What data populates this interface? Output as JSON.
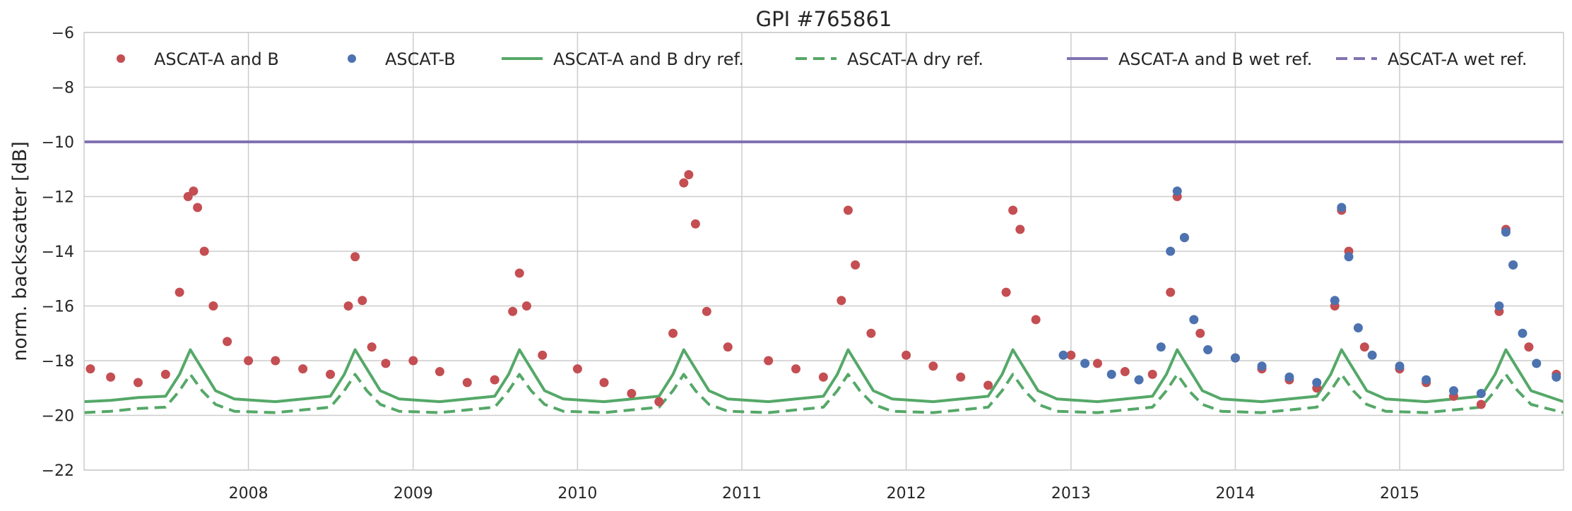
{
  "chart_data": {
    "type": "scatter",
    "title": "GPI #765861",
    "xlabel": "",
    "ylabel": "norm. backscatter [dB]",
    "xlim": [
      "2007-01-01",
      "2015-12-31"
    ],
    "ylim": [
      -22,
      -6
    ],
    "yticks": [
      -22,
      -20,
      -18,
      -16,
      -14,
      -12,
      -10,
      -8,
      -6
    ],
    "yticklabels": [
      "−22",
      "−20",
      "−18",
      "−16",
      "−14",
      "−12",
      "−10",
      "−8",
      "−6"
    ],
    "xticks": [
      "2008-01-01",
      "2009-01-01",
      "2010-01-01",
      "2011-01-01",
      "2012-01-01",
      "2013-01-01",
      "2014-01-01",
      "2015-01-01"
    ],
    "xticklabels": [
      "2008",
      "2009",
      "2010",
      "2011",
      "2012",
      "2013",
      "2014",
      "2015"
    ],
    "grid": true,
    "legend_position": "top",
    "series": [
      {
        "name": "ASCAT-A and B",
        "kind": "scatter",
        "color": "#c44e52",
        "x": [
          "2007-01-15",
          "2007-03-01",
          "2007-05-01",
          "2007-07-01",
          "2007-08-01",
          "2007-08-20",
          "2007-09-01",
          "2007-09-10",
          "2007-09-25",
          "2007-10-15",
          "2007-11-15",
          "2008-01-01",
          "2008-03-01",
          "2008-05-01",
          "2008-07-01",
          "2008-08-10",
          "2008-08-25",
          "2008-09-10",
          "2008-10-01",
          "2008-11-01",
          "2009-01-01",
          "2009-03-01",
          "2009-05-01",
          "2009-07-01",
          "2009-08-10",
          "2009-08-25",
          "2009-09-10",
          "2009-10-15",
          "2010-01-01",
          "2010-03-01",
          "2010-05-01",
          "2010-07-01",
          "2010-08-01",
          "2010-08-25",
          "2010-09-05",
          "2010-09-20",
          "2010-10-15",
          "2010-12-01",
          "2011-03-01",
          "2011-05-01",
          "2011-07-01",
          "2011-08-10",
          "2011-08-25",
          "2011-09-10",
          "2011-10-15",
          "2012-01-01",
          "2012-03-01",
          "2012-05-01",
          "2012-07-01",
          "2012-08-10",
          "2012-08-25",
          "2012-09-10",
          "2012-10-15",
          "2013-01-01",
          "2013-03-01",
          "2013-05-01",
          "2013-07-01",
          "2013-08-10",
          "2013-08-25",
          "2013-09-10",
          "2013-10-15",
          "2014-01-01",
          "2014-03-01",
          "2014-05-01",
          "2014-07-01",
          "2014-08-10",
          "2014-08-25",
          "2014-09-10",
          "2014-10-15",
          "2015-01-01",
          "2015-03-01",
          "2015-05-01",
          "2015-07-01",
          "2015-08-10",
          "2015-08-25",
          "2015-09-10",
          "2015-10-15",
          "2015-12-15"
        ],
        "y": [
          -18.3,
          -18.6,
          -18.8,
          -18.5,
          -15.5,
          -12.0,
          -11.8,
          -12.4,
          -14.0,
          -16.0,
          -17.3,
          -18.0,
          -18.0,
          -18.3,
          -18.5,
          -16.0,
          -14.2,
          -15.8,
          -17.5,
          -18.1,
          -18.0,
          -18.4,
          -18.8,
          -18.7,
          -16.2,
          -14.8,
          -16.0,
          -17.8,
          -18.3,
          -18.8,
          -19.2,
          -19.5,
          -17.0,
          -11.5,
          -11.2,
          -13.0,
          -16.2,
          -17.5,
          -18.0,
          -18.3,
          -18.6,
          -15.8,
          -12.5,
          -14.5,
          -17.0,
          -17.8,
          -18.2,
          -18.6,
          -18.9,
          -15.5,
          -12.5,
          -13.2,
          -16.5,
          -17.8,
          -18.1,
          -18.4,
          -18.5,
          -15.5,
          -12.0,
          -13.5,
          -17.0,
          -17.9,
          -18.3,
          -18.7,
          -19.0,
          -16.0,
          -12.5,
          -14.0,
          -17.5,
          -18.3,
          -18.8,
          -19.3,
          -19.6,
          -16.2,
          -13.2,
          -14.5,
          -17.5,
          -18.5
        ]
      },
      {
        "name": "ASCAT-B",
        "kind": "scatter",
        "color": "#4c72b0",
        "x": [
          "2012-12-15",
          "2013-02-01",
          "2013-04-01",
          "2013-06-01",
          "2013-07-20",
          "2013-08-10",
          "2013-08-25",
          "2013-09-10",
          "2013-10-01",
          "2013-11-01",
          "2014-01-01",
          "2014-03-01",
          "2014-05-01",
          "2014-07-01",
          "2014-08-10",
          "2014-08-25",
          "2014-09-10",
          "2014-10-01",
          "2014-11-01",
          "2015-01-01",
          "2015-03-01",
          "2015-05-01",
          "2015-07-01",
          "2015-08-10",
          "2015-08-25",
          "2015-09-10",
          "2015-10-01",
          "2015-11-01",
          "2015-12-15"
        ],
        "y": [
          -17.8,
          -18.1,
          -18.5,
          -18.7,
          -17.5,
          -14.0,
          -11.8,
          -13.5,
          -16.5,
          -17.6,
          -17.9,
          -18.2,
          -18.6,
          -18.8,
          -15.8,
          -12.4,
          -14.2,
          -16.8,
          -17.8,
          -18.2,
          -18.7,
          -19.1,
          -19.2,
          -16.0,
          -13.3,
          -14.5,
          -17.0,
          -18.1,
          -18.6
        ]
      },
      {
        "name": "ASCAT-A and B dry ref.",
        "kind": "line",
        "style": "solid",
        "color": "#55a868",
        "x": [
          "2007-01-01",
          "2007-03-01",
          "2007-05-01",
          "2007-07-01",
          "2007-08-01",
          "2007-08-25",
          "2007-09-20",
          "2007-10-20",
          "2007-12-01",
          "2008-03-01",
          "2008-05-01",
          "2008-07-01",
          "2008-08-01",
          "2008-08-25",
          "2008-09-20",
          "2008-10-20",
          "2008-12-01",
          "2009-03-01",
          "2009-05-01",
          "2009-07-01",
          "2009-08-01",
          "2009-08-25",
          "2009-09-20",
          "2009-10-20",
          "2009-12-01",
          "2010-03-01",
          "2010-05-01",
          "2010-07-01",
          "2010-08-01",
          "2010-08-25",
          "2010-09-20",
          "2010-10-20",
          "2010-12-01",
          "2011-03-01",
          "2011-05-01",
          "2011-07-01",
          "2011-08-01",
          "2011-08-25",
          "2011-09-20",
          "2011-10-20",
          "2011-12-01",
          "2012-03-01",
          "2012-05-01",
          "2012-07-01",
          "2012-08-01",
          "2012-08-25",
          "2012-09-20",
          "2012-10-20",
          "2012-12-01",
          "2013-03-01",
          "2013-05-01",
          "2013-07-01",
          "2013-08-01",
          "2013-08-25",
          "2013-09-20",
          "2013-10-20",
          "2013-12-01",
          "2014-03-01",
          "2014-05-01",
          "2014-07-01",
          "2014-08-01",
          "2014-08-25",
          "2014-09-20",
          "2014-10-20",
          "2014-12-01",
          "2015-03-01",
          "2015-05-01",
          "2015-07-01",
          "2015-08-01",
          "2015-08-25",
          "2015-09-20",
          "2015-10-20",
          "2015-12-31"
        ],
        "y": [
          -19.5,
          -19.45,
          -19.35,
          -19.3,
          -18.5,
          -17.6,
          -18.3,
          -19.1,
          -19.4,
          -19.5,
          -19.4,
          -19.3,
          -18.5,
          -17.6,
          -18.3,
          -19.1,
          -19.4,
          -19.5,
          -19.4,
          -19.3,
          -18.5,
          -17.6,
          -18.3,
          -19.1,
          -19.4,
          -19.5,
          -19.4,
          -19.3,
          -18.5,
          -17.6,
          -18.3,
          -19.1,
          -19.4,
          -19.5,
          -19.4,
          -19.3,
          -18.5,
          -17.6,
          -18.3,
          -19.1,
          -19.4,
          -19.5,
          -19.4,
          -19.3,
          -18.5,
          -17.6,
          -18.3,
          -19.1,
          -19.4,
          -19.5,
          -19.4,
          -19.3,
          -18.5,
          -17.6,
          -18.3,
          -19.1,
          -19.4,
          -19.5,
          -19.4,
          -19.3,
          -18.5,
          -17.6,
          -18.3,
          -19.1,
          -19.4,
          -19.5,
          -19.4,
          -19.3,
          -18.5,
          -17.6,
          -18.3,
          -19.1,
          -19.5
        ]
      },
      {
        "name": "ASCAT-A dry ref.",
        "kind": "line",
        "style": "dashed",
        "color": "#55a868",
        "x": [
          "2007-01-01",
          "2007-03-01",
          "2007-05-01",
          "2007-07-01",
          "2007-08-01",
          "2007-08-25",
          "2007-09-20",
          "2007-10-20",
          "2007-12-01",
          "2008-03-01",
          "2008-05-01",
          "2008-07-01",
          "2008-08-01",
          "2008-08-25",
          "2008-09-20",
          "2008-10-20",
          "2008-12-01",
          "2009-03-01",
          "2009-05-01",
          "2009-07-01",
          "2009-08-01",
          "2009-08-25",
          "2009-09-20",
          "2009-10-20",
          "2009-12-01",
          "2010-03-01",
          "2010-05-01",
          "2010-07-01",
          "2010-08-01",
          "2010-08-25",
          "2010-09-20",
          "2010-10-20",
          "2010-12-01",
          "2011-03-01",
          "2011-05-01",
          "2011-07-01",
          "2011-08-01",
          "2011-08-25",
          "2011-09-20",
          "2011-10-20",
          "2011-12-01",
          "2012-03-01",
          "2012-05-01",
          "2012-07-01",
          "2012-08-01",
          "2012-08-25",
          "2012-09-20",
          "2012-10-20",
          "2012-12-01",
          "2013-03-01",
          "2013-05-01",
          "2013-07-01",
          "2013-08-01",
          "2013-08-25",
          "2013-09-20",
          "2013-10-20",
          "2013-12-01",
          "2014-03-01",
          "2014-05-01",
          "2014-07-01",
          "2014-08-01",
          "2014-08-25",
          "2014-09-20",
          "2014-10-20",
          "2014-12-01",
          "2015-03-01",
          "2015-05-01",
          "2015-07-01",
          "2015-08-01",
          "2015-08-25",
          "2015-09-20",
          "2015-10-20",
          "2015-12-31"
        ],
        "y": [
          -19.9,
          -19.85,
          -19.75,
          -19.7,
          -19.1,
          -18.5,
          -19.1,
          -19.6,
          -19.85,
          -19.9,
          -19.8,
          -19.7,
          -19.1,
          -18.5,
          -19.1,
          -19.6,
          -19.85,
          -19.9,
          -19.8,
          -19.7,
          -19.1,
          -18.5,
          -19.1,
          -19.6,
          -19.85,
          -19.9,
          -19.8,
          -19.7,
          -19.1,
          -18.5,
          -19.1,
          -19.6,
          -19.85,
          -19.9,
          -19.8,
          -19.7,
          -19.1,
          -18.5,
          -19.1,
          -19.6,
          -19.85,
          -19.9,
          -19.8,
          -19.7,
          -19.1,
          -18.5,
          -19.1,
          -19.6,
          -19.85,
          -19.9,
          -19.8,
          -19.7,
          -19.1,
          -18.5,
          -19.1,
          -19.6,
          -19.85,
          -19.9,
          -19.8,
          -19.7,
          -19.1,
          -18.5,
          -19.1,
          -19.6,
          -19.85,
          -19.9,
          -19.8,
          -19.7,
          -19.1,
          -18.5,
          -19.1,
          -19.6,
          -19.9
        ]
      },
      {
        "name": "ASCAT-A and B wet ref.",
        "kind": "line",
        "style": "solid",
        "color": "#8172b2",
        "x": [
          "2007-01-01",
          "2015-12-31"
        ],
        "y": [
          -10.0,
          -10.0
        ]
      },
      {
        "name": "ASCAT-A wet ref.",
        "kind": "line",
        "style": "dashed",
        "color": "#8172b2",
        "x": [
          "2007-01-01",
          "2015-12-31"
        ],
        "y": [
          -10.0,
          -10.0
        ]
      }
    ]
  }
}
